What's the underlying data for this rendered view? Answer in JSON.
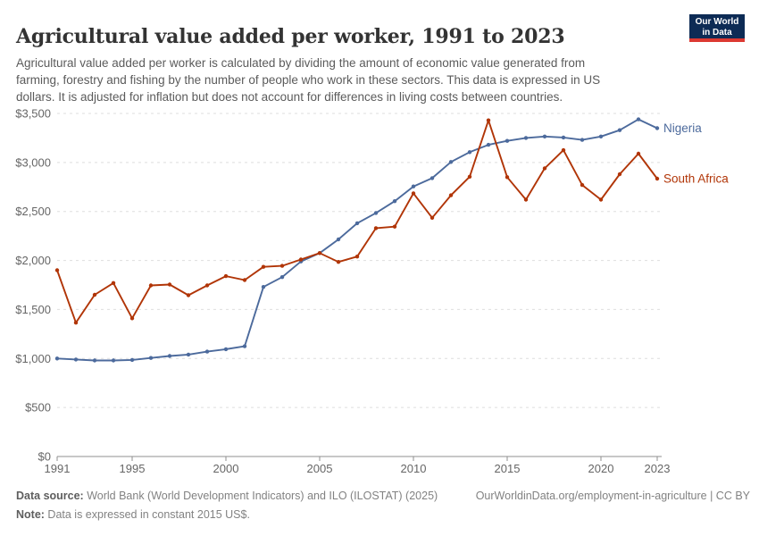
{
  "header": {
    "title": "Agricultural value added per worker, 1991 to 2023",
    "logo": {
      "line1": "Our World",
      "line2": "in Data"
    }
  },
  "subtitle": {
    "lines": [
      "Agricultural value added per worker is calculated by dividing the amount of economic value generated from",
      "farming, forestry and fishing by the number of people who work in these sectors. This data is expressed in US",
      "dollars. It is adjusted for inflation but does not account for differences in living costs between countries."
    ]
  },
  "chart_data": {
    "type": "line",
    "title": "Agricultural value added per worker, 1991 to 2023",
    "x": [
      1991,
      1992,
      1993,
      1994,
      1995,
      1996,
      1997,
      1998,
      1999,
      2000,
      2001,
      2002,
      2003,
      2004,
      2005,
      2006,
      2007,
      2008,
      2009,
      2010,
      2011,
      2012,
      2013,
      2014,
      2015,
      2016,
      2017,
      2018,
      2019,
      2020,
      2021,
      2022,
      2023
    ],
    "series": [
      {
        "name": "Nigeria",
        "color": "#4C6A9C",
        "values": [
          1000,
          990,
          980,
          980,
          985,
          1005,
          1025,
          1040,
          1070,
          1095,
          1125,
          1730,
          1830,
          1990,
          2075,
          2215,
          2380,
          2485,
          2605,
          2755,
          2840,
          3005,
          3105,
          3180,
          3220,
          3250,
          3265,
          3255,
          3230,
          3265,
          3330,
          3440,
          3350
        ]
      },
      {
        "name": "South Africa",
        "color": "#B13507",
        "values": [
          1900,
          1365,
          1650,
          1770,
          1410,
          1745,
          1755,
          1645,
          1745,
          1840,
          1800,
          1935,
          1945,
          2010,
          2075,
          1985,
          2040,
          2330,
          2345,
          2685,
          2435,
          2665,
          2855,
          3430,
          2850,
          2620,
          2940,
          3125,
          2770,
          2620,
          2880,
          3090,
          2835
        ]
      }
    ],
    "xlim": [
      1991,
      2023
    ],
    "ylim": [
      0,
      3500
    ],
    "xticks": [
      1991,
      1995,
      2000,
      2005,
      2010,
      2015,
      2020,
      2023
    ],
    "yticks": [
      0,
      500,
      1000,
      1500,
      2000,
      2500,
      3000,
      3500
    ],
    "ytick_labels": [
      "$0",
      "$500",
      "$1,000",
      "$1,500",
      "$2,000",
      "$2,500",
      "$3,000",
      "$3,500"
    ],
    "grid": "horizontal-dashed",
    "legend_position": "line-end-labels"
  },
  "footer": {
    "source_label": "Data source:",
    "source_text": " World Bank (World Development Indicators) and ILO (ILOSTAT) (2025)",
    "attribution": "OurWorldinData.org/employment-in-agriculture | CC BY",
    "note_label": "Note:",
    "note_text": " Data is expressed in constant 2015 US$."
  },
  "colors": {
    "nigeria_line": "#4C6A9C",
    "south_africa_line": "#B13507",
    "gridline": "#dedede",
    "axis": "#8f8f8f",
    "tick_text": "#666666",
    "title_text": "#333333",
    "subtitle_text": "#5b5b5b",
    "logo_background": "#0d2b55",
    "logo_accent": "#dc3932"
  }
}
